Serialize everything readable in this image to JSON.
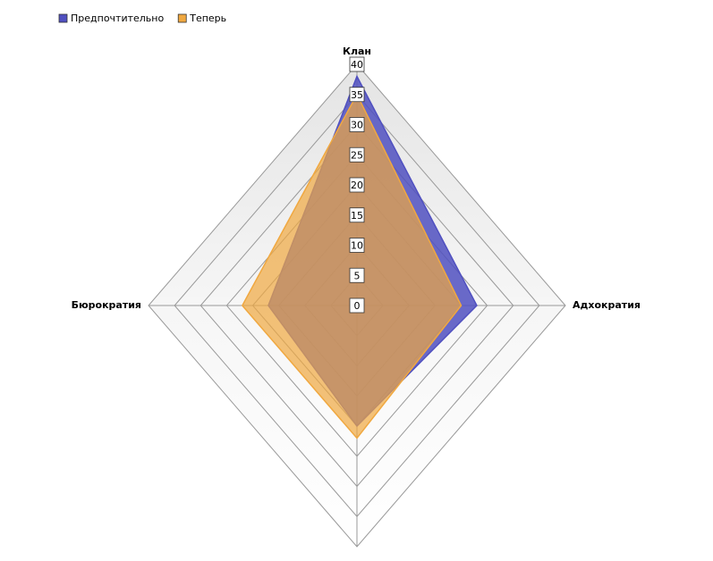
{
  "chart_data": {
    "type": "radar",
    "categories": [
      "Клан",
      "Адхократия",
      null,
      "Бюрократия"
    ],
    "series": [
      {
        "name": "Предпочтительно",
        "color": "#5050c0",
        "values": [
          38,
          23,
          20,
          17
        ]
      },
      {
        "name": "Теперь",
        "color": "#f0a840",
        "values": [
          35,
          20,
          22,
          22
        ]
      }
    ],
    "ylim": [
      0,
      40
    ],
    "yticks": [
      0,
      5,
      10,
      15,
      20,
      25,
      30,
      35,
      40
    ],
    "grid": true,
    "legend": "top-left"
  }
}
